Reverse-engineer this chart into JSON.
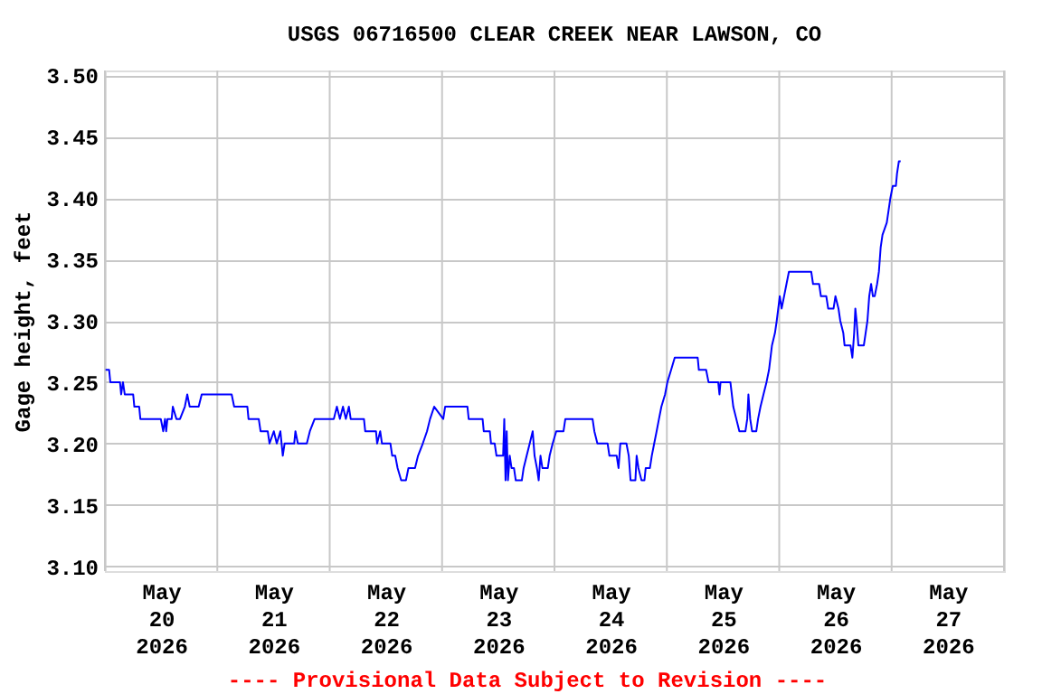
{
  "chart_data": {
    "type": "line",
    "title": "USGS 06716500 CLEAR CREEK NEAR LAWSON, CO",
    "ylabel": "Gage height, feet",
    "annotations": [
      "---- Provisional Data Subject to Revision ----"
    ],
    "x": [
      "2026-05-20T00:08",
      "2026-05-20T00:54",
      "2026-05-20T01:09",
      "2026-05-20T03:13",
      "2026-05-20T03:28",
      "2026-05-20T03:51",
      "2026-05-20T04:14",
      "2026-05-20T06:02",
      "2026-05-20T06:17",
      "2026-05-20T07:19",
      "2026-05-20T07:34",
      "2026-05-20T11:56",
      "2026-05-20T12:27",
      "2026-05-20T12:50",
      "2026-05-20T13:05",
      "2026-05-20T13:21",
      "2026-05-20T14:15",
      "2026-05-20T14:30",
      "2026-05-20T15:16",
      "2026-05-20T16:02",
      "2026-05-20T17:04",
      "2026-05-20T17:35",
      "2026-05-20T18:06",
      "2026-05-20T20:01",
      "2026-05-20T20:40",
      "2026-05-21T03:04",
      "2026-05-21T03:36",
      "2026-05-21T06:25",
      "2026-05-21T06:40",
      "2026-05-21T08:51",
      "2026-05-21T09:14",
      "2026-05-21T10:46",
      "2026-05-21T11:09",
      "2026-05-21T12:04",
      "2026-05-21T12:42",
      "2026-05-21T13:28",
      "2026-05-21T13:59",
      "2026-05-21T14:22",
      "2026-05-21T16:25",
      "2026-05-21T16:41",
      "2026-05-21T17:12",
      "2026-05-21T19:07",
      "2026-05-21T19:46",
      "2026-05-21T20:47",
      "2026-05-22T00:53",
      "2026-05-22T01:32",
      "2026-05-22T02:11",
      "2026-05-22T02:50",
      "2026-05-22T03:27",
      "2026-05-22T04:06",
      "2026-05-22T04:29",
      "2026-05-22T07:19",
      "2026-05-22T07:35",
      "2026-05-22T09:53",
      "2026-05-22T10:08",
      "2026-05-22T10:47",
      "2026-05-22T11:10",
      "2026-05-22T12:58",
      "2026-05-22T13:21",
      "2026-05-22T14:00",
      "2026-05-22T14:30",
      "2026-05-22T15:16",
      "2026-05-22T16:17",
      "2026-05-22T16:49",
      "2026-05-22T18:13",
      "2026-05-22T18:52",
      "2026-05-22T19:53",
      "2026-05-22T20:47",
      "2026-05-22T21:26",
      "2026-05-22T22:19",
      "2026-05-23T00:15",
      "2026-05-23T00:39",
      "2026-05-23T05:25",
      "2026-05-23T05:41",
      "2026-05-23T08:39",
      "2026-05-23T08:54",
      "2026-05-23T10:12",
      "2026-05-23T10:27",
      "2026-05-23T11:14",
      "2026-05-23T11:37",
      "2026-05-23T13:02",
      "2026-05-23T13:17",
      "2026-05-23T13:33",
      "2026-05-23T13:48",
      "2026-05-23T14:04",
      "2026-05-23T14:27",
      "2026-05-23T14:50",
      "2026-05-23T15:21",
      "2026-05-23T15:44",
      "2026-05-23T17:02",
      "2026-05-23T17:25",
      "2026-05-23T18:04",
      "2026-05-23T18:43",
      "2026-05-23T19:21",
      "2026-05-23T19:45",
      "2026-05-23T20:15",
      "2026-05-23T20:38",
      "2026-05-23T21:01",
      "2026-05-23T21:25",
      "2026-05-23T22:35",
      "2026-05-23T22:58",
      "2026-05-23T23:37",
      "2026-05-24T00:23",
      "2026-05-24T01:56",
      "2026-05-24T02:19",
      "2026-05-24T08:08",
      "2026-05-24T08:31",
      "2026-05-24T09:10",
      "2026-05-24T11:21",
      "2026-05-24T11:44",
      "2026-05-24T13:17",
      "2026-05-24T13:41",
      "2026-05-24T14:04",
      "2026-05-24T15:22",
      "2026-05-24T15:52",
      "2026-05-24T16:15",
      "2026-05-24T17:17",
      "2026-05-24T17:33",
      "2026-05-24T17:56",
      "2026-05-24T18:35",
      "2026-05-24T19:13",
      "2026-05-24T19:29",
      "2026-05-24T20:23",
      "2026-05-24T20:47",
      "2026-05-24T21:18",
      "2026-05-24T21:49",
      "2026-05-24T22:19",
      "2026-05-24T22:50",
      "2026-05-24T23:37",
      "2026-05-25T00:07",
      "2026-05-25T00:55",
      "2026-05-25T01:41",
      "2026-05-25T06:35",
      "2026-05-25T06:50",
      "2026-05-25T08:23",
      "2026-05-25T08:54",
      "2026-05-25T10:58",
      "2026-05-25T11:14",
      "2026-05-25T11:28",
      "2026-05-25T13:34",
      "2026-05-25T14:11",
      "2026-05-25T14:50",
      "2026-05-25T15:29",
      "2026-05-25T16:47",
      "2026-05-25T17:10",
      "2026-05-25T17:25",
      "2026-05-25T17:48",
      "2026-05-25T18:12",
      "2026-05-25T19:06",
      "2026-05-25T19:29",
      "2026-05-25T20:00",
      "2026-05-25T20:38",
      "2026-05-25T21:17",
      "2026-05-25T21:49",
      "2026-05-25T22:27",
      "2026-05-25T23:05",
      "2026-05-25T23:28",
      "2026-05-26T00:07",
      "2026-05-26T00:31",
      "2026-05-26T01:02",
      "2026-05-26T01:33",
      "2026-05-26T02:04",
      "2026-05-26T06:50",
      "2026-05-26T07:13",
      "2026-05-26T08:31",
      "2026-05-26T08:54",
      "2026-05-26T10:03",
      "2026-05-26T10:27",
      "2026-05-26T11:36",
      "2026-05-26T12:00",
      "2026-05-26T12:39",
      "2026-05-26T13:02",
      "2026-05-26T13:41",
      "2026-05-26T13:57",
      "2026-05-26T15:13",
      "2026-05-26T15:37",
      "2026-05-26T16:00",
      "2026-05-26T16:15",
      "2026-05-26T16:31",
      "2026-05-26T16:54",
      "2026-05-26T18:04",
      "2026-05-26T18:27",
      "2026-05-26T18:50",
      "2026-05-26T19:13",
      "2026-05-26T19:37",
      "2026-05-26T20:00",
      "2026-05-26T20:23",
      "2026-05-26T20:54",
      "2026-05-26T21:17",
      "2026-05-26T21:40",
      "2026-05-26T22:03",
      "2026-05-26T22:58",
      "2026-05-26T23:21",
      "2026-05-26T23:44",
      "2026-05-27T00:15",
      "2026-05-27T00:55",
      "2026-05-27T01:09",
      "2026-05-27T01:33",
      "2026-05-27T01:56"
    ],
    "series": [
      {
        "color": "#0000ff",
        "values": [
          3.26,
          3.26,
          3.25,
          3.25,
          3.24,
          3.25,
          3.24,
          3.24,
          3.23,
          3.23,
          3.22,
          3.22,
          3.21,
          3.22,
          3.21,
          3.22,
          3.22,
          3.23,
          3.22,
          3.22,
          3.23,
          3.24,
          3.23,
          3.23,
          3.24,
          3.24,
          3.23,
          3.23,
          3.22,
          3.22,
          3.21,
          3.21,
          3.2,
          3.21,
          3.2,
          3.21,
          3.19,
          3.2,
          3.2,
          3.21,
          3.2,
          3.2,
          3.21,
          3.22,
          3.22,
          3.23,
          3.22,
          3.23,
          3.22,
          3.23,
          3.22,
          3.22,
          3.21,
          3.21,
          3.2,
          3.21,
          3.2,
          3.2,
          3.19,
          3.19,
          3.18,
          3.17,
          3.17,
          3.18,
          3.18,
          3.19,
          3.2,
          3.21,
          3.22,
          3.23,
          3.22,
          3.23,
          3.23,
          3.22,
          3.22,
          3.21,
          3.21,
          3.2,
          3.2,
          3.19,
          3.19,
          3.22,
          3.17,
          3.21,
          3.17,
          3.19,
          3.18,
          3.18,
          3.17,
          3.17,
          3.18,
          3.19,
          3.2,
          3.21,
          3.19,
          3.18,
          3.17,
          3.19,
          3.18,
          3.18,
          3.19,
          3.2,
          3.21,
          3.21,
          3.22,
          3.22,
          3.21,
          3.2,
          3.2,
          3.19,
          3.19,
          3.18,
          3.2,
          3.2,
          3.19,
          3.17,
          3.17,
          3.19,
          3.18,
          3.17,
          3.17,
          3.18,
          3.18,
          3.19,
          3.2,
          3.21,
          3.22,
          3.23,
          3.24,
          3.25,
          3.26,
          3.27,
          3.27,
          3.26,
          3.26,
          3.25,
          3.25,
          3.24,
          3.25,
          3.25,
          3.23,
          3.22,
          3.21,
          3.21,
          3.22,
          3.24,
          3.22,
          3.21,
          3.21,
          3.22,
          3.23,
          3.24,
          3.25,
          3.26,
          3.28,
          3.29,
          3.3,
          3.32,
          3.31,
          3.32,
          3.33,
          3.34,
          3.34,
          3.33,
          3.33,
          3.32,
          3.32,
          3.31,
          3.31,
          3.32,
          3.31,
          3.3,
          3.29,
          3.28,
          3.28,
          3.27,
          3.29,
          3.31,
          3.3,
          3.28,
          3.28,
          3.29,
          3.3,
          3.32,
          3.33,
          3.32,
          3.32,
          3.33,
          3.34,
          3.36,
          3.37,
          3.38,
          3.39,
          3.4,
          3.41,
          3.41,
          3.42,
          3.43,
          3.43
        ]
      }
    ],
    "xlim": [
      "2026-05-20T00:00",
      "2026-05-28T00:00"
    ],
    "xticks": [
      {
        "value": "2026-05-20T00:00",
        "label": null
      },
      {
        "value": "2026-05-20T12:00",
        "label": "May 20 2026"
      },
      {
        "value": "2026-05-21T00:00",
        "label": null
      },
      {
        "value": "2026-05-21T12:00",
        "label": "May 21 2026"
      },
      {
        "value": "2026-05-22T00:00",
        "label": null
      },
      {
        "value": "2026-05-22T12:00",
        "label": "May 22 2026"
      },
      {
        "value": "2026-05-23T00:00",
        "label": null
      },
      {
        "value": "2026-05-23T12:00",
        "label": "May 23 2026"
      },
      {
        "value": "2026-05-24T00:00",
        "label": null
      },
      {
        "value": "2026-05-24T12:00",
        "label": "May 24 2026"
      },
      {
        "value": "2026-05-25T00:00",
        "label": null
      },
      {
        "value": "2026-05-25T12:00",
        "label": "May 25 2026"
      },
      {
        "value": "2026-05-26T00:00",
        "label": null
      },
      {
        "value": "2026-05-26T12:00",
        "label": "May 26 2026"
      },
      {
        "value": "2026-05-27T00:00",
        "label": null
      },
      {
        "value": "2026-05-27T12:00",
        "label": "May 27 2026"
      },
      {
        "value": "2026-05-28T00:00",
        "label": null
      }
    ],
    "ylim": [
      3.096,
      3.504
    ],
    "yticks": [
      {
        "value": 3.1,
        "label": "3.10"
      },
      {
        "value": 3.15,
        "label": "3.15"
      },
      {
        "value": 3.2,
        "label": "3.20"
      },
      {
        "value": 3.25,
        "label": "3.25"
      },
      {
        "value": 3.3,
        "label": "3.30"
      },
      {
        "value": 3.35,
        "label": "3.35"
      },
      {
        "value": 3.4,
        "label": "3.40"
      },
      {
        "value": 3.45,
        "label": "3.45"
      },
      {
        "value": 3.5,
        "label": "3.50"
      }
    ],
    "grid": true
  }
}
